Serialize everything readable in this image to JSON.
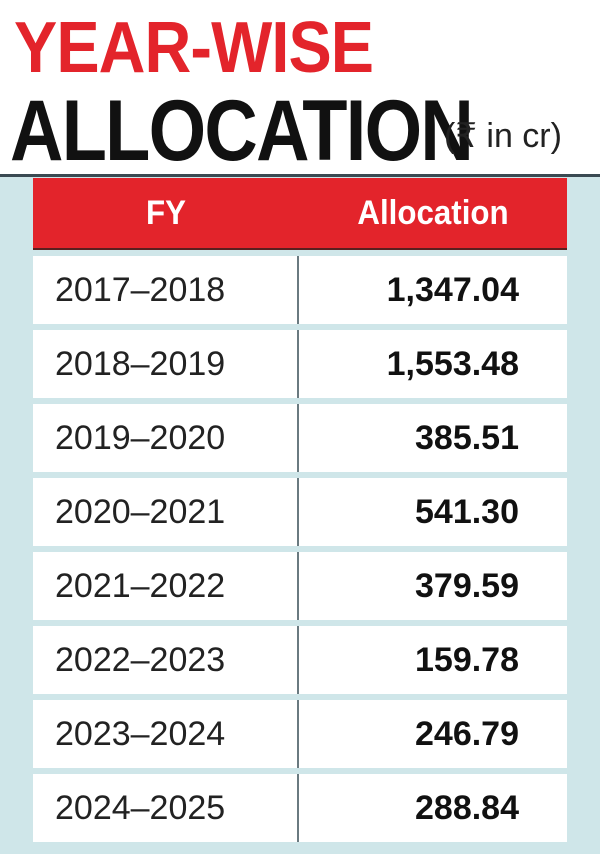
{
  "title": {
    "line1": "YEAR-WISE",
    "line2": "ALLOCATION",
    "unit": "(₹ in cr)"
  },
  "colors": {
    "accent_red": "#e3242b",
    "panel_bg": "#cfe6e9",
    "row_bg": "#ffffff"
  },
  "chart_data": {
    "type": "table",
    "title": "YEAR-WISE ALLOCATION",
    "unit": "(₹ in cr)",
    "columns": [
      "FY",
      "Allocation"
    ],
    "rows": [
      {
        "fy": "2017–2018",
        "allocation": "1,347.04"
      },
      {
        "fy": "2018–2019",
        "allocation": "1,553.48"
      },
      {
        "fy": "2019–2020",
        "allocation": "385.51"
      },
      {
        "fy": "2020–2021",
        "allocation": "541.30"
      },
      {
        "fy": "2021–2022",
        "allocation": "379.59"
      },
      {
        "fy": "2022–2023",
        "allocation": "159.78"
      },
      {
        "fy": "2023–2024",
        "allocation": "246.79"
      },
      {
        "fy": "2024–2025",
        "allocation": "288.84"
      }
    ]
  }
}
